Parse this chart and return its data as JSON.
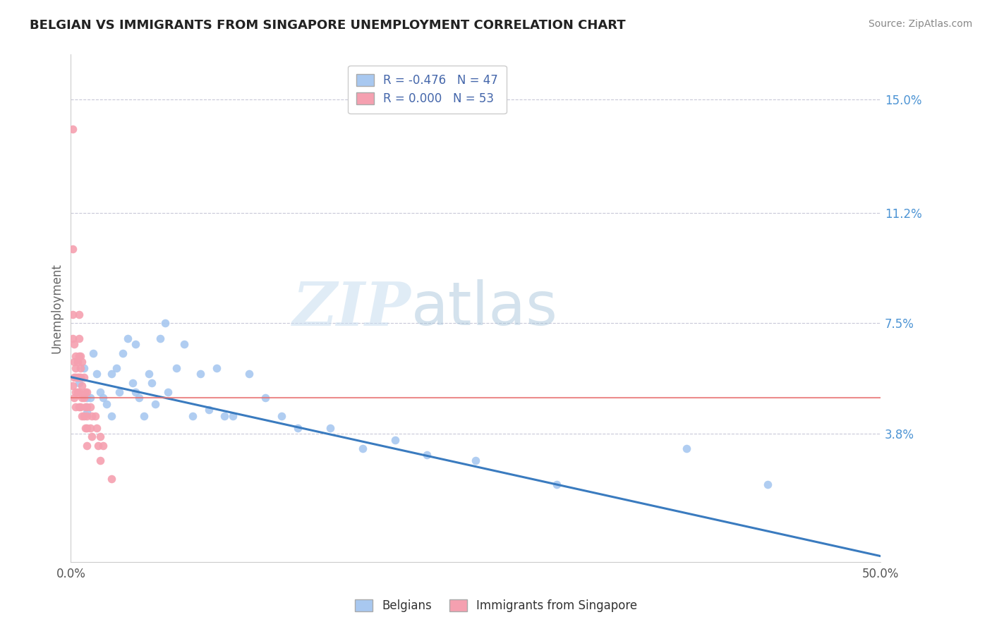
{
  "title": "BELGIAN VS IMMIGRANTS FROM SINGAPORE UNEMPLOYMENT CORRELATION CHART",
  "source": "Source: ZipAtlas.com",
  "ylabel": "Unemployment",
  "ytick_labels": [
    "15.0%",
    "11.2%",
    "7.5%",
    "3.8%"
  ],
  "ytick_values": [
    0.15,
    0.112,
    0.075,
    0.038
  ],
  "belgians_color": "#a8c8f0",
  "singapore_color": "#f5a0b0",
  "trend_color": "#3a7bbf",
  "hline_color": "#e87070",
  "background_color": "#ffffff",
  "watermark_zip": "ZIP",
  "watermark_atlas": "atlas",
  "xlim": [
    0.0,
    0.5
  ],
  "ylim": [
    -0.005,
    0.165
  ],
  "belgians_x": [
    0.005,
    0.008,
    0.01,
    0.01,
    0.012,
    0.014,
    0.016,
    0.018,
    0.02,
    0.022,
    0.025,
    0.025,
    0.028,
    0.03,
    0.032,
    0.035,
    0.038,
    0.04,
    0.04,
    0.042,
    0.045,
    0.048,
    0.05,
    0.052,
    0.055,
    0.058,
    0.06,
    0.065,
    0.07,
    0.075,
    0.08,
    0.085,
    0.09,
    0.095,
    0.1,
    0.11,
    0.12,
    0.13,
    0.14,
    0.16,
    0.18,
    0.2,
    0.22,
    0.25,
    0.3,
    0.38,
    0.43
  ],
  "belgians_y": [
    0.055,
    0.06,
    0.05,
    0.045,
    0.05,
    0.065,
    0.058,
    0.052,
    0.05,
    0.048,
    0.058,
    0.044,
    0.06,
    0.052,
    0.065,
    0.07,
    0.055,
    0.052,
    0.068,
    0.05,
    0.044,
    0.058,
    0.055,
    0.048,
    0.07,
    0.075,
    0.052,
    0.06,
    0.068,
    0.044,
    0.058,
    0.046,
    0.06,
    0.044,
    0.044,
    0.058,
    0.05,
    0.044,
    0.04,
    0.04,
    0.033,
    0.036,
    0.031,
    0.029,
    0.021,
    0.033,
    0.021
  ],
  "singapore_x": [
    0.001,
    0.001,
    0.001,
    0.001,
    0.001,
    0.002,
    0.002,
    0.002,
    0.002,
    0.003,
    0.003,
    0.003,
    0.003,
    0.003,
    0.004,
    0.004,
    0.004,
    0.005,
    0.005,
    0.005,
    0.005,
    0.005,
    0.005,
    0.006,
    0.006,
    0.006,
    0.006,
    0.007,
    0.007,
    0.007,
    0.007,
    0.008,
    0.008,
    0.008,
    0.009,
    0.009,
    0.009,
    0.01,
    0.01,
    0.01,
    0.01,
    0.01,
    0.012,
    0.012,
    0.013,
    0.013,
    0.015,
    0.016,
    0.017,
    0.018,
    0.018,
    0.02,
    0.025
  ],
  "singapore_y": [
    0.14,
    0.1,
    0.078,
    0.07,
    0.054,
    0.068,
    0.062,
    0.057,
    0.05,
    0.064,
    0.06,
    0.057,
    0.052,
    0.047,
    0.062,
    0.057,
    0.052,
    0.078,
    0.07,
    0.064,
    0.057,
    0.052,
    0.047,
    0.064,
    0.06,
    0.057,
    0.047,
    0.062,
    0.054,
    0.05,
    0.044,
    0.057,
    0.05,
    0.044,
    0.052,
    0.047,
    0.04,
    0.052,
    0.047,
    0.044,
    0.04,
    0.034,
    0.047,
    0.04,
    0.044,
    0.037,
    0.044,
    0.04,
    0.034,
    0.037,
    0.029,
    0.034,
    0.023
  ],
  "trend_x_start": 0.0,
  "trend_x_end": 0.5,
  "trend_y_start": 0.057,
  "trend_y_end": -0.003,
  "hline_y": 0.05,
  "grid_color": "#c8c8d8",
  "grid_linestyle": "--",
  "spine_color": "#cccccc"
}
